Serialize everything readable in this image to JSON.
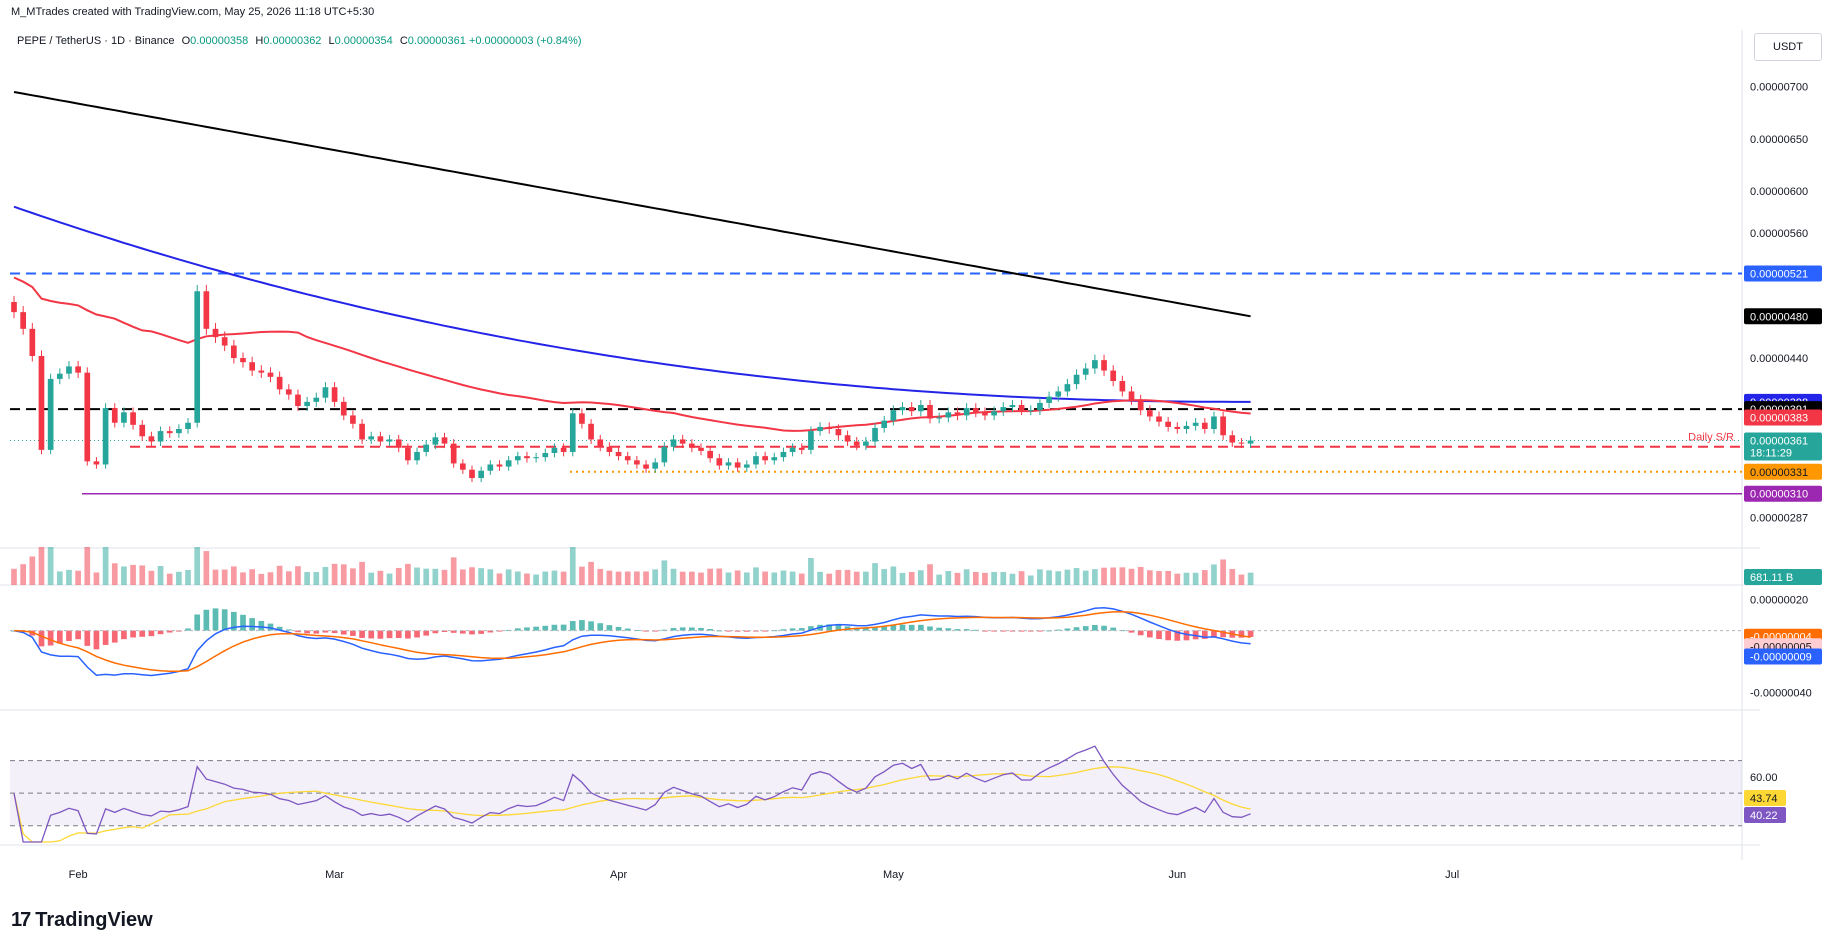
{
  "header": {
    "creator_line": "M_MTrades created with TradingView.com, May 25, 2026 11:18 UTC+5:30",
    "symbol_line": "PEPE / TetherUS · 1D · Binance",
    "open_label": "O",
    "open": "0.00000358",
    "high_label": "H",
    "high": "0.00000362",
    "low_label": "L",
    "low": "0.00000354",
    "close_label": "C",
    "close": "0.00000361",
    "change": "+0.00000003 (+0.84%)"
  },
  "unit": "USDT",
  "brand": "TradingView",
  "colors": {
    "up": "#26a69a",
    "down": "#f23645",
    "ma50": "#f23645",
    "ma100": "#2424e8",
    "ma200": "#000000",
    "macd_line": "#2962ff",
    "macd_signal": "#ff6d00",
    "rsi": "#7e57c2",
    "rsi_ma": "#fdd835",
    "support_red": "#f23645",
    "level_blue": "#2962ff",
    "level_purple": "#9c27b0",
    "level_orange": "#ff9800"
  },
  "chart_data": {
    "type": "candlestick",
    "symbol": "PEPE / TetherUS",
    "interval": "1D",
    "exchange": "Binance",
    "x_tick_labels": [
      "Feb",
      "Mar",
      "Apr",
      "May",
      "Jun",
      "Jul"
    ],
    "price_ticks": [
      "0.00000700",
      "0.00000650",
      "0.00000600",
      "0.00000560",
      "0.00000440",
      "0.00000287"
    ],
    "price_range": [
      2.8e-06,
      7.4e-06
    ],
    "first_date": "2026-01-25",
    "closes": [
      4.84e-06,
      4.68e-06,
      4.42e-06,
      3.52e-06,
      4.2e-06,
      4.25e-06,
      4.32e-06,
      4.26e-06,
      3.41e-06,
      3.38e-06,
      3.92e-06,
      3.78e-06,
      3.88e-06,
      3.76e-06,
      3.65e-06,
      3.6e-06,
      3.7e-06,
      3.68e-06,
      3.72e-06,
      3.78e-06,
      5.04e-06,
      4.68e-06,
      4.6e-06,
      4.52e-06,
      4.4e-06,
      4.36e-06,
      4.28e-06,
      4.26e-06,
      4.22e-06,
      4.1e-06,
      4.05e-06,
      3.94e-06,
      3.98e-06,
      4.02e-06,
      4.12e-06,
      3.98e-06,
      3.85e-06,
      3.77e-06,
      3.62e-06,
      3.65e-06,
      3.6e-06,
      3.62e-06,
      3.54e-06,
      3.42e-06,
      3.5e-06,
      3.57e-06,
      3.64e-06,
      3.58e-06,
      3.39e-06,
      3.33e-06,
      3.25e-06,
      3.32e-06,
      3.38e-06,
      3.36e-06,
      3.42e-06,
      3.46e-06,
      3.44e-06,
      3.45e-06,
      3.49e-06,
      3.54e-06,
      3.5e-06,
      3.87e-06,
      3.77e-06,
      3.62e-06,
      3.55e-06,
      3.5e-06,
      3.46e-06,
      3.42e-06,
      3.38e-06,
      3.34e-06,
      3.4e-06,
      3.55e-06,
      3.62e-06,
      3.58e-06,
      3.54e-06,
      3.51e-06,
      3.44e-06,
      3.37e-06,
      3.4e-06,
      3.35e-06,
      3.38e-06,
      3.46e-06,
      3.42e-06,
      3.45e-06,
      3.5e-06,
      3.54e-06,
      3.52e-06,
      3.7e-06,
      3.74e-06,
      3.72e-06,
      3.66e-06,
      3.6e-06,
      3.56e-06,
      3.6e-06,
      3.73e-06,
      3.8e-06,
      3.9e-06,
      3.93e-06,
      3.89e-06,
      3.95e-06,
      3.82e-06,
      3.83e-06,
      3.88e-06,
      3.85e-06,
      3.92e-06,
      3.88e-06,
      3.85e-06,
      3.89e-06,
      3.93e-06,
      3.95e-06,
      3.9e-06,
      3.9e-06,
      3.97e-06,
      4.03e-06,
      4.08e-06,
      4.15e-06,
      4.24e-06,
      4.3e-06,
      4.38e-06,
      4.28e-06,
      4.18e-06,
      4.08e-06,
      4e-06,
      3.9e-06,
      3.84e-06,
      3.79e-06,
      3.74e-06,
      3.72e-06,
      3.75e-06,
      3.78e-06,
      3.72e-06,
      3.84e-06,
      3.66e-06,
      3.59e-06,
      3.58e-06,
      3.61e-06
    ]
  },
  "macd_axis": [
    "0.00000020",
    "-0.00000040"
  ],
  "macd_current": {
    "signal": "-0.00000004",
    "histogram": "-0.00000005",
    "macd": "-0.00000009"
  },
  "rsi_axis": [
    "60.00"
  ],
  "rsi_current": {
    "rsi_ma": "43.74",
    "rsi": "40.22"
  },
  "volume_current": "681.11 B",
  "levels": [
    {
      "name": "level-521",
      "label": "0.00000521",
      "value": 5.21e-06,
      "style": "dashed",
      "color": "#2962ff",
      "text_color": "#ffffff"
    },
    {
      "name": "ma200-value",
      "label": "0.00000480",
      "value": 4.8e-06,
      "style": "none",
      "color": "#000000",
      "text_color": "#ffffff"
    },
    {
      "name": "ma100-value",
      "label": "0.00000398",
      "value": 3.98e-06,
      "style": "none",
      "color": "#2424e8",
      "text_color": "#ffffff"
    },
    {
      "name": "level-391",
      "label": "0.00000391",
      "value": 3.91e-06,
      "style": "dashed",
      "color": "#000000",
      "text_color": "#ffffff"
    },
    {
      "name": "ma50-value",
      "label": "0.00000383",
      "value": 3.83e-06,
      "style": "none",
      "color": "#f23645",
      "text_color": "#ffffff"
    },
    {
      "name": "daily-sr",
      "label": "0.00000355",
      "value": 3.55e-06,
      "style": "dashed",
      "color": "#f23645",
      "text_color": "#ffffff",
      "annotation": "Daily S/R"
    },
    {
      "name": "level-331",
      "label": "0.00000331",
      "value": 3.31e-06,
      "style": "dotted",
      "color": "#ff9800",
      "text_color": "#131722"
    },
    {
      "name": "level-310",
      "label": "0.00000310",
      "value": 3.1e-06,
      "style": "solid",
      "color": "#9c27b0",
      "text_color": "#ffffff"
    }
  ],
  "last_price": {
    "label": "0.00000361",
    "countdown": "18:11:29"
  }
}
